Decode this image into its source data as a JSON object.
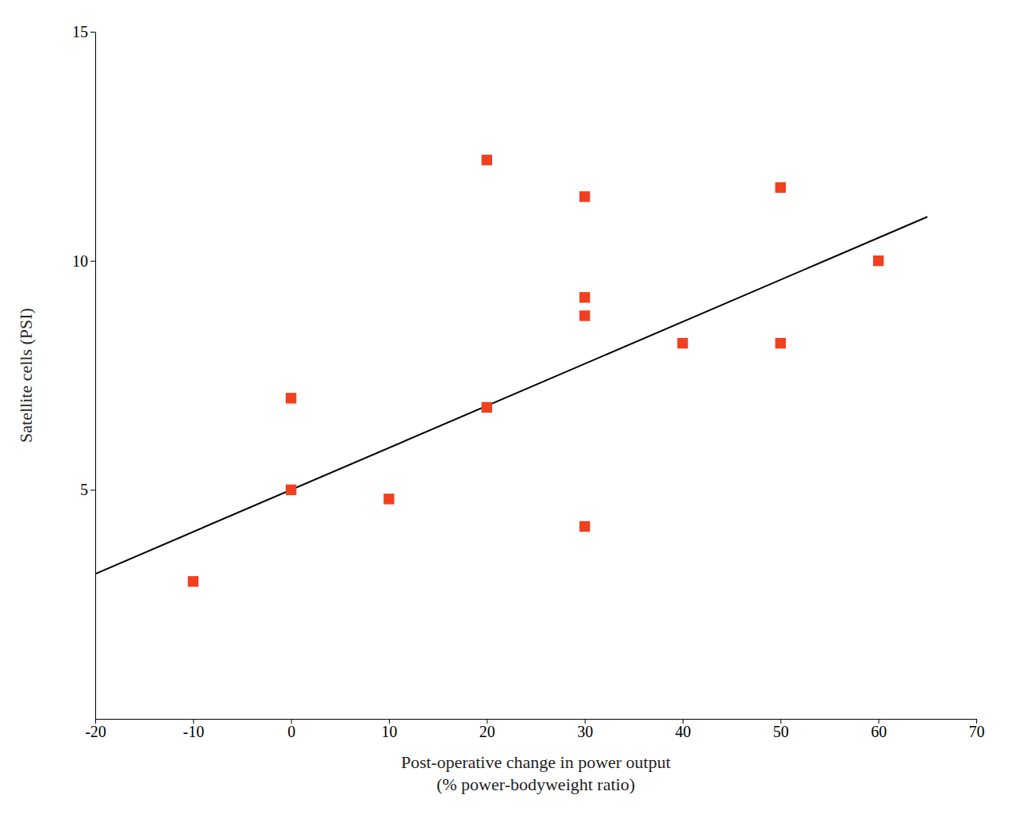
{
  "chart_data": {
    "type": "scatter",
    "xlabel": [
      "Post-operative change in power output",
      "(% power-bodyweight ratio)"
    ],
    "ylabel": "Satellite cells (PSI)",
    "series": [
      {
        "type": "scatter",
        "color": "#f04020",
        "marker": "square",
        "x": [
          -10,
          0,
          0,
          10,
          20,
          20,
          30,
          30,
          30,
          30,
          40,
          50,
          50,
          60
        ],
        "values": [
          3.0,
          5.0,
          7.0,
          4.8,
          12.2,
          6.8,
          11.4,
          9.2,
          8.8,
          4.2,
          8.2,
          11.6,
          8.2,
          10.0
        ]
      },
      {
        "type": "line",
        "color": "#000000",
        "line_style": "solid",
        "x": [
          -20,
          65
        ],
        "values": [
          3.166,
          10.9605
        ]
      }
    ],
    "xlim": [
      -20,
      70
    ],
    "ylim": [
      0,
      15
    ],
    "xticks": [
      -20,
      -10,
      0,
      10,
      20,
      30,
      40,
      50,
      60,
      70
    ],
    "yticks": [
      5,
      10,
      15
    ],
    "grid": false
  }
}
